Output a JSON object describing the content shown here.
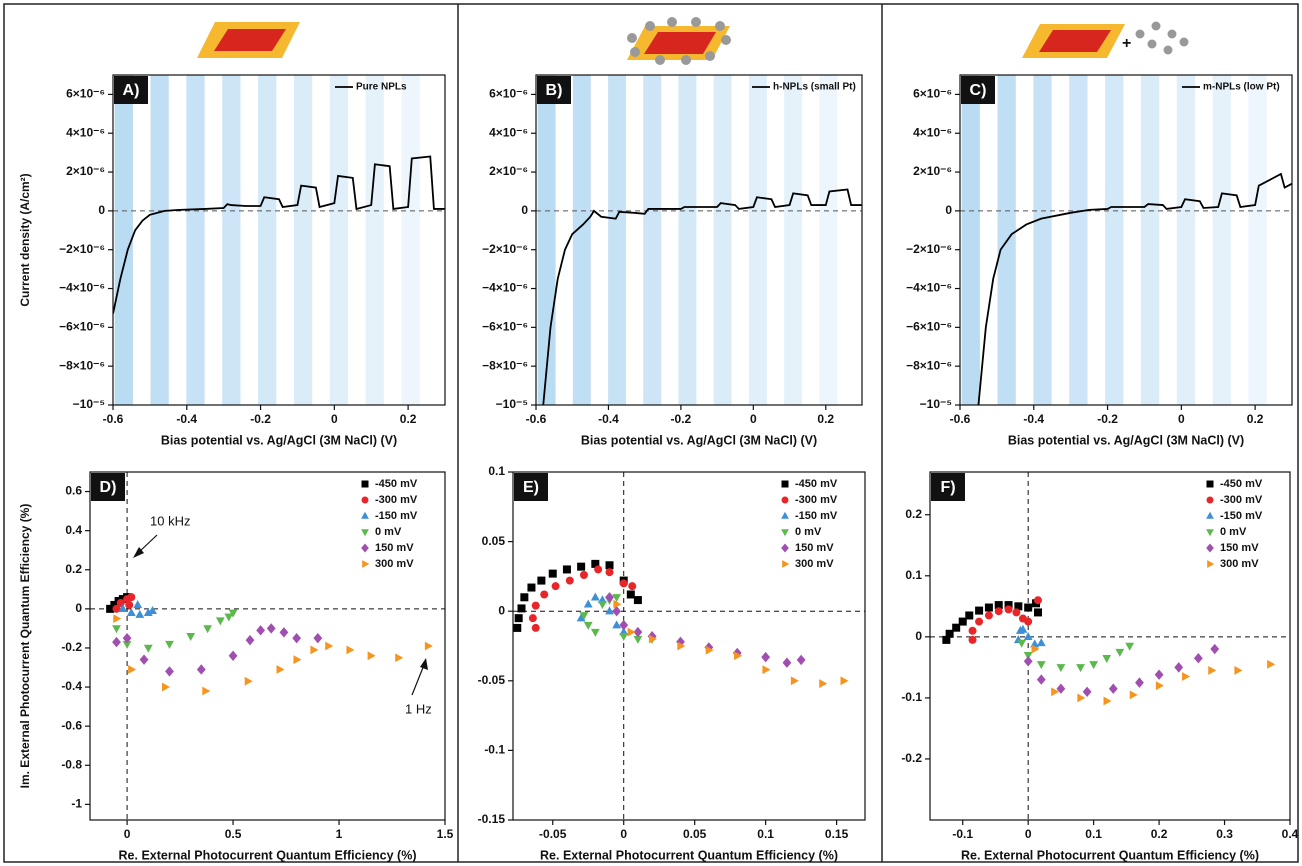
{
  "chart_data": [
    {
      "type": "line",
      "panel_label": "A)",
      "xlabel": "Bias potential vs. Ag/AgCl (3M NaCl) (V)",
      "ylabel": "Current density (A/cm²)",
      "xlim": [
        -0.6,
        0.3
      ],
      "xticks": [
        -0.6,
        -0.4,
        -0.2,
        0,
        0.2
      ],
      "ylim": [
        -1e-05,
        7e-06
      ],
      "yticks": [
        {
          "value": -1e-05,
          "label": "−10⁻⁵"
        },
        {
          "value": -8e-06,
          "label": "−8×10⁻⁶"
        },
        {
          "value": -6e-06,
          "label": "−6×10⁻⁶"
        },
        {
          "value": -4e-06,
          "label": "−4×10⁻⁶"
        },
        {
          "value": -2e-06,
          "label": "−2×10⁻⁶"
        },
        0,
        {
          "value": 2e-06,
          "label": "2×10⁻⁶"
        },
        {
          "value": 4e-06,
          "label": "4×10⁻⁶"
        },
        {
          "value": 6e-06,
          "label": "6×10⁻⁶"
        }
      ],
      "x": [
        -0.6,
        -0.58,
        -0.56,
        -0.54,
        -0.52,
        -0.5,
        -0.46,
        -0.42,
        -0.35,
        -0.3,
        -0.29,
        -0.28,
        -0.24,
        -0.2,
        -0.19,
        -0.15,
        -0.14,
        -0.1,
        -0.09,
        -0.05,
        -0.04,
        0,
        0.01,
        0.05,
        0.06,
        0.1,
        0.11,
        0.15,
        0.16,
        0.2,
        0.21,
        0.26,
        0.27,
        0.3
      ],
      "series": [
        {
          "name": "Pure NPLs",
          "color": "#000000",
          "values": [
            -5.3e-06,
            -3.5e-06,
            -2e-06,
            -1e-06,
            -5e-07,
            -2e-07,
            0,
            5e-08,
            1e-07,
            1.5e-07,
            3.5e-07,
            3e-07,
            2.5e-07,
            2.5e-07,
            7e-07,
            6e-07,
            2e-07,
            3e-07,
            1.3e-06,
            1.2e-06,
            2e-07,
            4e-07,
            1.8e-06,
            1.7e-06,
            1e-07,
            3e-07,
            2.4e-06,
            2.3e-06,
            1e-07,
            2e-07,
            2.7e-06,
            2.8e-06,
            1e-07,
            1e-07
          ]
        }
      ]
    },
    {
      "type": "line",
      "panel_label": "B)",
      "xlabel": "Bias potential vs. Ag/AgCl (3M NaCl) (V)",
      "xlim": [
        -0.6,
        0.3
      ],
      "xticks": [
        -0.6,
        -0.4,
        -0.2,
        0,
        0.2
      ],
      "ylim": [
        -1e-05,
        7e-06
      ],
      "yticks": [
        {
          "value": -1e-05,
          "label": "−10⁻⁵"
        },
        {
          "value": -8e-06,
          "label": "−8×10⁻⁶"
        },
        {
          "value": -6e-06,
          "label": "−6×10⁻⁶"
        },
        {
          "value": -4e-06,
          "label": "−4×10⁻⁶"
        },
        {
          "value": -2e-06,
          "label": "−2×10⁻⁶"
        },
        0,
        {
          "value": 2e-06,
          "label": "2×10⁻⁶"
        },
        {
          "value": 4e-06,
          "label": "4×10⁻⁶"
        },
        {
          "value": 6e-06,
          "label": "6×10⁻⁶"
        }
      ],
      "x": [
        -0.58,
        -0.56,
        -0.54,
        -0.52,
        -0.5,
        -0.47,
        -0.45,
        -0.44,
        -0.42,
        -0.38,
        -0.37,
        -0.33,
        -0.3,
        -0.29,
        -0.2,
        -0.19,
        -0.1,
        -0.09,
        -0.05,
        -0.04,
        0,
        0.01,
        0.05,
        0.06,
        0.1,
        0.11,
        0.15,
        0.16,
        0.2,
        0.21,
        0.26,
        0.27,
        0.3
      ],
      "series": [
        {
          "name": "h-NPLs (small Pt)",
          "color": "#000000",
          "values": [
            -1e-05,
            -6e-06,
            -3.5e-06,
            -2e-06,
            -1.2e-06,
            -7e-07,
            -3e-07,
            0,
            -3e-07,
            -4e-07,
            -5e-08,
            -1e-07,
            -1.5e-07,
            1e-07,
            1e-07,
            2e-07,
            2e-07,
            4e-07,
            3e-07,
            1e-07,
            2e-07,
            7e-07,
            6e-07,
            2e-07,
            3e-07,
            9e-07,
            8e-07,
            3e-07,
            3e-07,
            1e-06,
            1.1e-06,
            3e-07,
            3e-07
          ]
        }
      ]
    },
    {
      "type": "line",
      "panel_label": "C)",
      "xlabel": "Bias potential vs. Ag/AgCl (3M NaCl) (V)",
      "xlim": [
        -0.6,
        0.3
      ],
      "xticks": [
        -0.6,
        -0.4,
        -0.2,
        0,
        0.2
      ],
      "ylim": [
        -1e-05,
        7e-06
      ],
      "yticks": [
        {
          "value": -1e-05,
          "label": "−10⁻⁵"
        },
        {
          "value": -8e-06,
          "label": "−8×10⁻⁶"
        },
        {
          "value": -6e-06,
          "label": "−6×10⁻⁶"
        },
        {
          "value": -4e-06,
          "label": "−4×10⁻⁶"
        },
        {
          "value": -2e-06,
          "label": "−2×10⁻⁶"
        },
        0,
        {
          "value": 2e-06,
          "label": "2×10⁻⁶"
        },
        {
          "value": 4e-06,
          "label": "4×10⁻⁶"
        },
        {
          "value": 6e-06,
          "label": "6×10⁻⁶"
        }
      ],
      "x": [
        -0.55,
        -0.53,
        -0.51,
        -0.49,
        -0.46,
        -0.42,
        -0.38,
        -0.3,
        -0.25,
        -0.2,
        -0.19,
        -0.1,
        -0.09,
        -0.05,
        -0.04,
        0,
        0.01,
        0.05,
        0.06,
        0.1,
        0.11,
        0.15,
        0.16,
        0.2,
        0.21,
        0.27,
        0.28,
        0.3
      ],
      "series": [
        {
          "name": "m-NPLs (low Pt)",
          "color": "#000000",
          "values": [
            -1e-05,
            -6e-06,
            -3.5e-06,
            -2e-06,
            -1.2e-06,
            -7e-07,
            -4e-07,
            -1e-07,
            5e-08,
            1e-07,
            2e-07,
            2e-07,
            3.5e-07,
            3e-07,
            1e-07,
            2e-07,
            6e-07,
            5e-07,
            1.5e-07,
            2e-07,
            9e-07,
            8e-07,
            2e-07,
            3e-07,
            1.3e-06,
            1.9e-06,
            1.2e-06,
            1.4e-06
          ]
        }
      ]
    },
    {
      "type": "scatter",
      "panel_label": "D)",
      "xlabel": "Re. External Photocurrent Quantum Efficiency (%)",
      "ylabel": "Im. External Photocurrent Quantum Efficiency (%)",
      "annotations": [
        "10 kHz",
        "1 Hz"
      ],
      "xlim": [
        -0.175,
        1.5
      ],
      "xticks": [
        0,
        0.5,
        1,
        1.5
      ],
      "ylim": [
        -1.08,
        0.7
      ],
      "yticks": [
        -1,
        -0.8,
        -0.6,
        -0.4,
        -0.2,
        0,
        0.2,
        0.4,
        0.6
      ],
      "series": [
        {
          "name": "-450 mV",
          "color": "#000000",
          "marker": "square",
          "x": [
            -0.08,
            -0.06,
            -0.04,
            -0.02,
            0
          ],
          "values": [
            0,
            0.02,
            0.04,
            0.05,
            0.06
          ]
        },
        {
          "name": "-300 mV",
          "color": "#e8262a",
          "marker": "circle",
          "x": [
            -0.05,
            -0.03,
            0,
            0.02,
            0.01
          ],
          "values": [
            0,
            0.03,
            0.05,
            0.06,
            0.02
          ]
        },
        {
          "name": "-150 mV",
          "color": "#3d8fd6",
          "marker": "triangle-up",
          "x": [
            -0.02,
            0.02,
            0.06,
            0.1,
            0.12,
            0.05
          ],
          "values": [
            0,
            -0.02,
            -0.03,
            -0.02,
            -0.01,
            0.02
          ]
        },
        {
          "name": "0 mV",
          "color": "#5cb84c",
          "marker": "triangle-down",
          "x": [
            -0.05,
            0,
            0.1,
            0.2,
            0.3,
            0.38,
            0.44,
            0.48,
            0.5
          ],
          "values": [
            -0.1,
            -0.18,
            -0.2,
            -0.18,
            -0.14,
            -0.1,
            -0.06,
            -0.04,
            -0.02
          ]
        },
        {
          "name": "150 mV",
          "color": "#a04fb0",
          "marker": "diamond",
          "x": [
            -0.05,
            0,
            0.08,
            0.2,
            0.35,
            0.5,
            0.58,
            0.63,
            0.68,
            0.74,
            0.8,
            0.9
          ],
          "values": [
            -0.17,
            -0.15,
            -0.26,
            -0.32,
            -0.31,
            -0.24,
            -0.16,
            -0.11,
            -0.1,
            -0.12,
            -0.15,
            -0.15
          ]
        },
        {
          "name": "300 mV",
          "color": "#f7941d",
          "marker": "triangle-right",
          "x": [
            -0.05,
            0.02,
            0.18,
            0.37,
            0.57,
            0.72,
            0.8,
            0.88,
            0.95,
            1.05,
            1.15,
            1.28,
            1.42
          ],
          "values": [
            -0.05,
            -0.31,
            -0.4,
            -0.42,
            -0.37,
            -0.31,
            -0.26,
            -0.21,
            -0.19,
            -0.21,
            -0.24,
            -0.25,
            -0.19
          ]
        }
      ]
    },
    {
      "type": "scatter",
      "panel_label": "E)",
      "xlabel": "Re. External Photocurrent Quantum Efficiency (%)",
      "xlim": [
        -0.078,
        0.17
      ],
      "xticks": [
        -0.05,
        0,
        0.05,
        0.1,
        0.15
      ],
      "ylim": [
        -0.15,
        0.1
      ],
      "yticks": [
        -0.15,
        -0.1,
        -0.05,
        0,
        0.05,
        0.1
      ],
      "series": [
        {
          "name": "-450 mV",
          "color": "#000000",
          "marker": "square",
          "x": [
            -0.075,
            -0.074,
            -0.072,
            -0.07,
            -0.065,
            -0.058,
            -0.05,
            -0.04,
            -0.03,
            -0.02,
            -0.01,
            0,
            0.005,
            0.01
          ],
          "values": [
            -0.012,
            -0.005,
            0.002,
            0.01,
            0.017,
            0.022,
            0.027,
            0.03,
            0.032,
            0.034,
            0.033,
            0.022,
            0.012,
            0.008
          ]
        },
        {
          "name": "-300 mV",
          "color": "#e8262a",
          "marker": "circle",
          "x": [
            -0.062,
            -0.064,
            -0.062,
            -0.056,
            -0.048,
            -0.038,
            -0.028,
            -0.018,
            -0.01,
            0,
            0.006
          ],
          "values": [
            -0.012,
            -0.005,
            0.004,
            0.012,
            0.018,
            0.022,
            0.026,
            0.03,
            0.028,
            0.02,
            0.018
          ]
        },
        {
          "name": "-150 mV",
          "color": "#3d8fd6",
          "marker": "triangle-up",
          "x": [
            -0.03,
            -0.025,
            -0.02,
            -0.015,
            -0.01,
            -0.005,
            0
          ],
          "values": [
            -0.005,
            0.005,
            0.01,
            0.008,
            0,
            -0.01,
            -0.015
          ]
        },
        {
          "name": "0 mV",
          "color": "#5cb84c",
          "marker": "triangle-down",
          "x": [
            -0.028,
            -0.025,
            -0.02,
            -0.015,
            -0.01,
            -0.005,
            0,
            0.01,
            0.02
          ],
          "values": [
            -0.003,
            -0.01,
            -0.015,
            0.005,
            0.008,
            0.01,
            -0.018,
            -0.02,
            -0.02
          ]
        },
        {
          "name": "150 mV",
          "color": "#a04fb0",
          "marker": "diamond",
          "x": [
            -0.01,
            -0.005,
            0,
            0.01,
            0.02,
            0.04,
            0.06,
            0.08,
            0.1,
            0.115,
            0.125
          ],
          "values": [
            0.01,
            0,
            -0.01,
            -0.015,
            -0.018,
            -0.022,
            -0.026,
            -0.03,
            -0.033,
            -0.037,
            -0.035
          ]
        },
        {
          "name": "300 mV",
          "color": "#f7941d",
          "marker": "triangle-right",
          "x": [
            -0.005,
            0.005,
            0.02,
            0.04,
            0.06,
            0.08,
            0.1,
            0.12,
            0.14,
            0.155
          ],
          "values": [
            0.005,
            -0.015,
            -0.02,
            -0.025,
            -0.028,
            -0.032,
            -0.042,
            -0.05,
            -0.052,
            -0.05
          ]
        }
      ]
    },
    {
      "type": "scatter",
      "panel_label": "F)",
      "xlabel": "Re. External Photocurrent Quantum Efficiency (%)",
      "xlim": [
        -0.15,
        0.4
      ],
      "xticks": [
        -0.1,
        0,
        0.1,
        0.2,
        0.3,
        0.4
      ],
      "ylim": [
        -0.3,
        0.27
      ],
      "yticks": [
        -0.2,
        -0.1,
        0,
        0.1,
        0.2
      ],
      "series": [
        {
          "name": "-450 mV",
          "color": "#000000",
          "marker": "square",
          "x": [
            -0.125,
            -0.12,
            -0.11,
            -0.1,
            -0.09,
            -0.075,
            -0.06,
            -0.045,
            -0.03,
            -0.015,
            0,
            0.012,
            0.015
          ],
          "values": [
            -0.005,
            0.005,
            0.015,
            0.025,
            0.035,
            0.043,
            0.048,
            0.052,
            0.052,
            0.05,
            0.048,
            0.055,
            0.04
          ]
        },
        {
          "name": "-300 mV",
          "color": "#e8262a",
          "marker": "circle",
          "x": [
            -0.085,
            -0.085,
            -0.075,
            -0.06,
            -0.045,
            -0.03,
            -0.018,
            -0.008,
            0,
            0.015
          ],
          "values": [
            -0.005,
            0.01,
            0.025,
            0.035,
            0.042,
            0.045,
            0.04,
            0.03,
            0.025,
            0.06
          ]
        },
        {
          "name": "-150 mV",
          "color": "#3d8fd6",
          "marker": "triangle-up",
          "x": [
            -0.015,
            -0.012,
            -0.008,
            0,
            0.01,
            0.02
          ],
          "values": [
            -0.005,
            0.01,
            0.012,
            0,
            -0.012,
            -0.01
          ]
        },
        {
          "name": "0 mV",
          "color": "#5cb84c",
          "marker": "triangle-down",
          "x": [
            -0.01,
            0,
            0.02,
            0.05,
            0.08,
            0.1,
            0.12,
            0.14,
            0.155
          ],
          "values": [
            -0.01,
            -0.03,
            -0.045,
            -0.05,
            -0.05,
            -0.045,
            -0.035,
            -0.025,
            -0.015
          ]
        },
        {
          "name": "150 mV",
          "color": "#a04fb0",
          "marker": "diamond",
          "x": [
            0,
            0.02,
            0.05,
            0.09,
            0.13,
            0.17,
            0.2,
            0.23,
            0.26,
            0.285
          ],
          "values": [
            -0.04,
            -0.07,
            -0.085,
            -0.09,
            -0.085,
            -0.075,
            -0.062,
            -0.05,
            -0.035,
            -0.02
          ]
        },
        {
          "name": "300 mV",
          "color": "#f7941d",
          "marker": "triangle-right",
          "x": [
            0.01,
            0.04,
            0.08,
            0.12,
            0.16,
            0.2,
            0.24,
            0.28,
            0.32,
            0.37
          ],
          "values": [
            -0.02,
            -0.09,
            -0.1,
            -0.105,
            -0.095,
            -0.08,
            -0.065,
            -0.055,
            -0.055,
            -0.045
          ]
        }
      ]
    }
  ]
}
